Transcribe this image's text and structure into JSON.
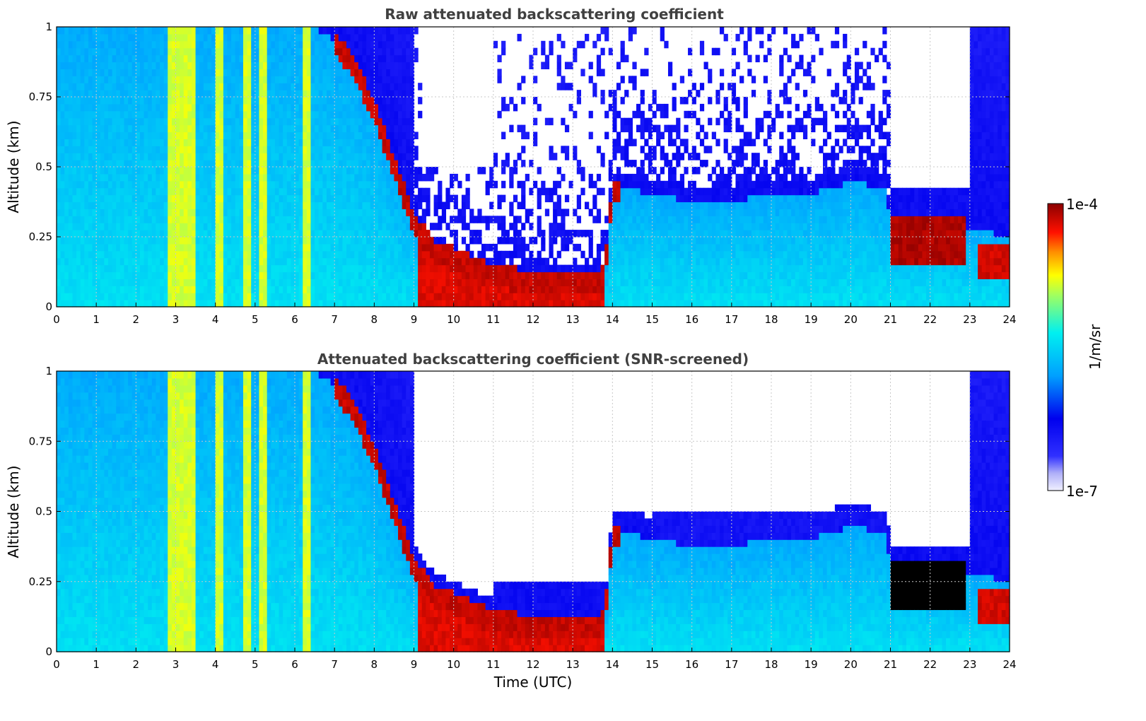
{
  "colors": {
    "title": "#404040",
    "colormap": [
      "#e6e6fa",
      "#0000ff",
      "#00bfff",
      "#00ffff",
      "#ffff00",
      "#ff8000",
      "#ff0000",
      "#8b0000"
    ],
    "saturated_screened": "#000000"
  },
  "chart_data": [
    {
      "type": "heatmap",
      "title": "Raw attenuated backscattering coefficient",
      "xlabel": "",
      "ylabel": "Altitude (km)",
      "xlim": [
        0,
        24
      ],
      "ylim": [
        0,
        1
      ],
      "xticks": [
        "0",
        "1",
        "2",
        "3",
        "4",
        "5",
        "6",
        "7",
        "8",
        "9",
        "10",
        "11",
        "12",
        "13",
        "14",
        "15",
        "16",
        "17",
        "18",
        "19",
        "20",
        "21",
        "22",
        "23",
        "24"
      ],
      "yticks": [
        "0",
        "0.25",
        "0.5",
        "0.75",
        "1"
      ],
      "grid": true,
      "scale": "log",
      "boundary_layer_top_km": [
        [
          0,
          1.0
        ],
        [
          6.5,
          1.0
        ],
        [
          7,
          0.95
        ],
        [
          7.5,
          0.85
        ],
        [
          8,
          0.7
        ],
        [
          8.5,
          0.5
        ],
        [
          9,
          0.3
        ],
        [
          9.5,
          0.2
        ],
        [
          10,
          0.17
        ],
        [
          10.5,
          0.14
        ],
        [
          11,
          0.11
        ],
        [
          12,
          0.09
        ],
        [
          13,
          0.09
        ],
        [
          13.5,
          0.09
        ],
        [
          13.8,
          0.1
        ],
        [
          14,
          0.42
        ],
        [
          14.5,
          0.42
        ],
        [
          15,
          0.4
        ],
        [
          16,
          0.38
        ],
        [
          17,
          0.38
        ],
        [
          18,
          0.4
        ],
        [
          19,
          0.4
        ],
        [
          20,
          0.45
        ],
        [
          20.9,
          0.42
        ],
        [
          21,
          0.3
        ],
        [
          22,
          0.3
        ],
        [
          23,
          0.28
        ],
        [
          24,
          0.25
        ]
      ],
      "dense_aerosol_segments": [
        {
          "start": 7.0,
          "end": 9.0,
          "note_level": "high"
        },
        {
          "start": 9.1,
          "end": 13.8,
          "note_level": "high"
        },
        {
          "start": 13.8,
          "end": 14.2,
          "note_level": "high"
        },
        {
          "start": 21.0,
          "end": 22.9,
          "note_level": "high"
        },
        {
          "start": 23.0,
          "end": 24.0,
          "note_level": "high"
        }
      ]
    },
    {
      "type": "heatmap",
      "title": "Attenuated backscattering coefficient (SNR-screened)",
      "xlabel": "Time (UTC)",
      "ylabel": "Altitude (km)",
      "xlim": [
        0,
        24
      ],
      "ylim": [
        0,
        1
      ],
      "xticks": [
        "0",
        "1",
        "2",
        "3",
        "4",
        "5",
        "6",
        "7",
        "8",
        "9",
        "10",
        "11",
        "12",
        "13",
        "14",
        "15",
        "16",
        "17",
        "18",
        "19",
        "20",
        "21",
        "22",
        "23",
        "24"
      ],
      "yticks": [
        "0",
        "0.25",
        "0.5",
        "0.75",
        "1"
      ],
      "grid": true,
      "scale": "log",
      "screened": true
    }
  ],
  "colorbar": {
    "label": "1/m/sr",
    "max_label": "1e-4",
    "min_label": "1e-7"
  }
}
